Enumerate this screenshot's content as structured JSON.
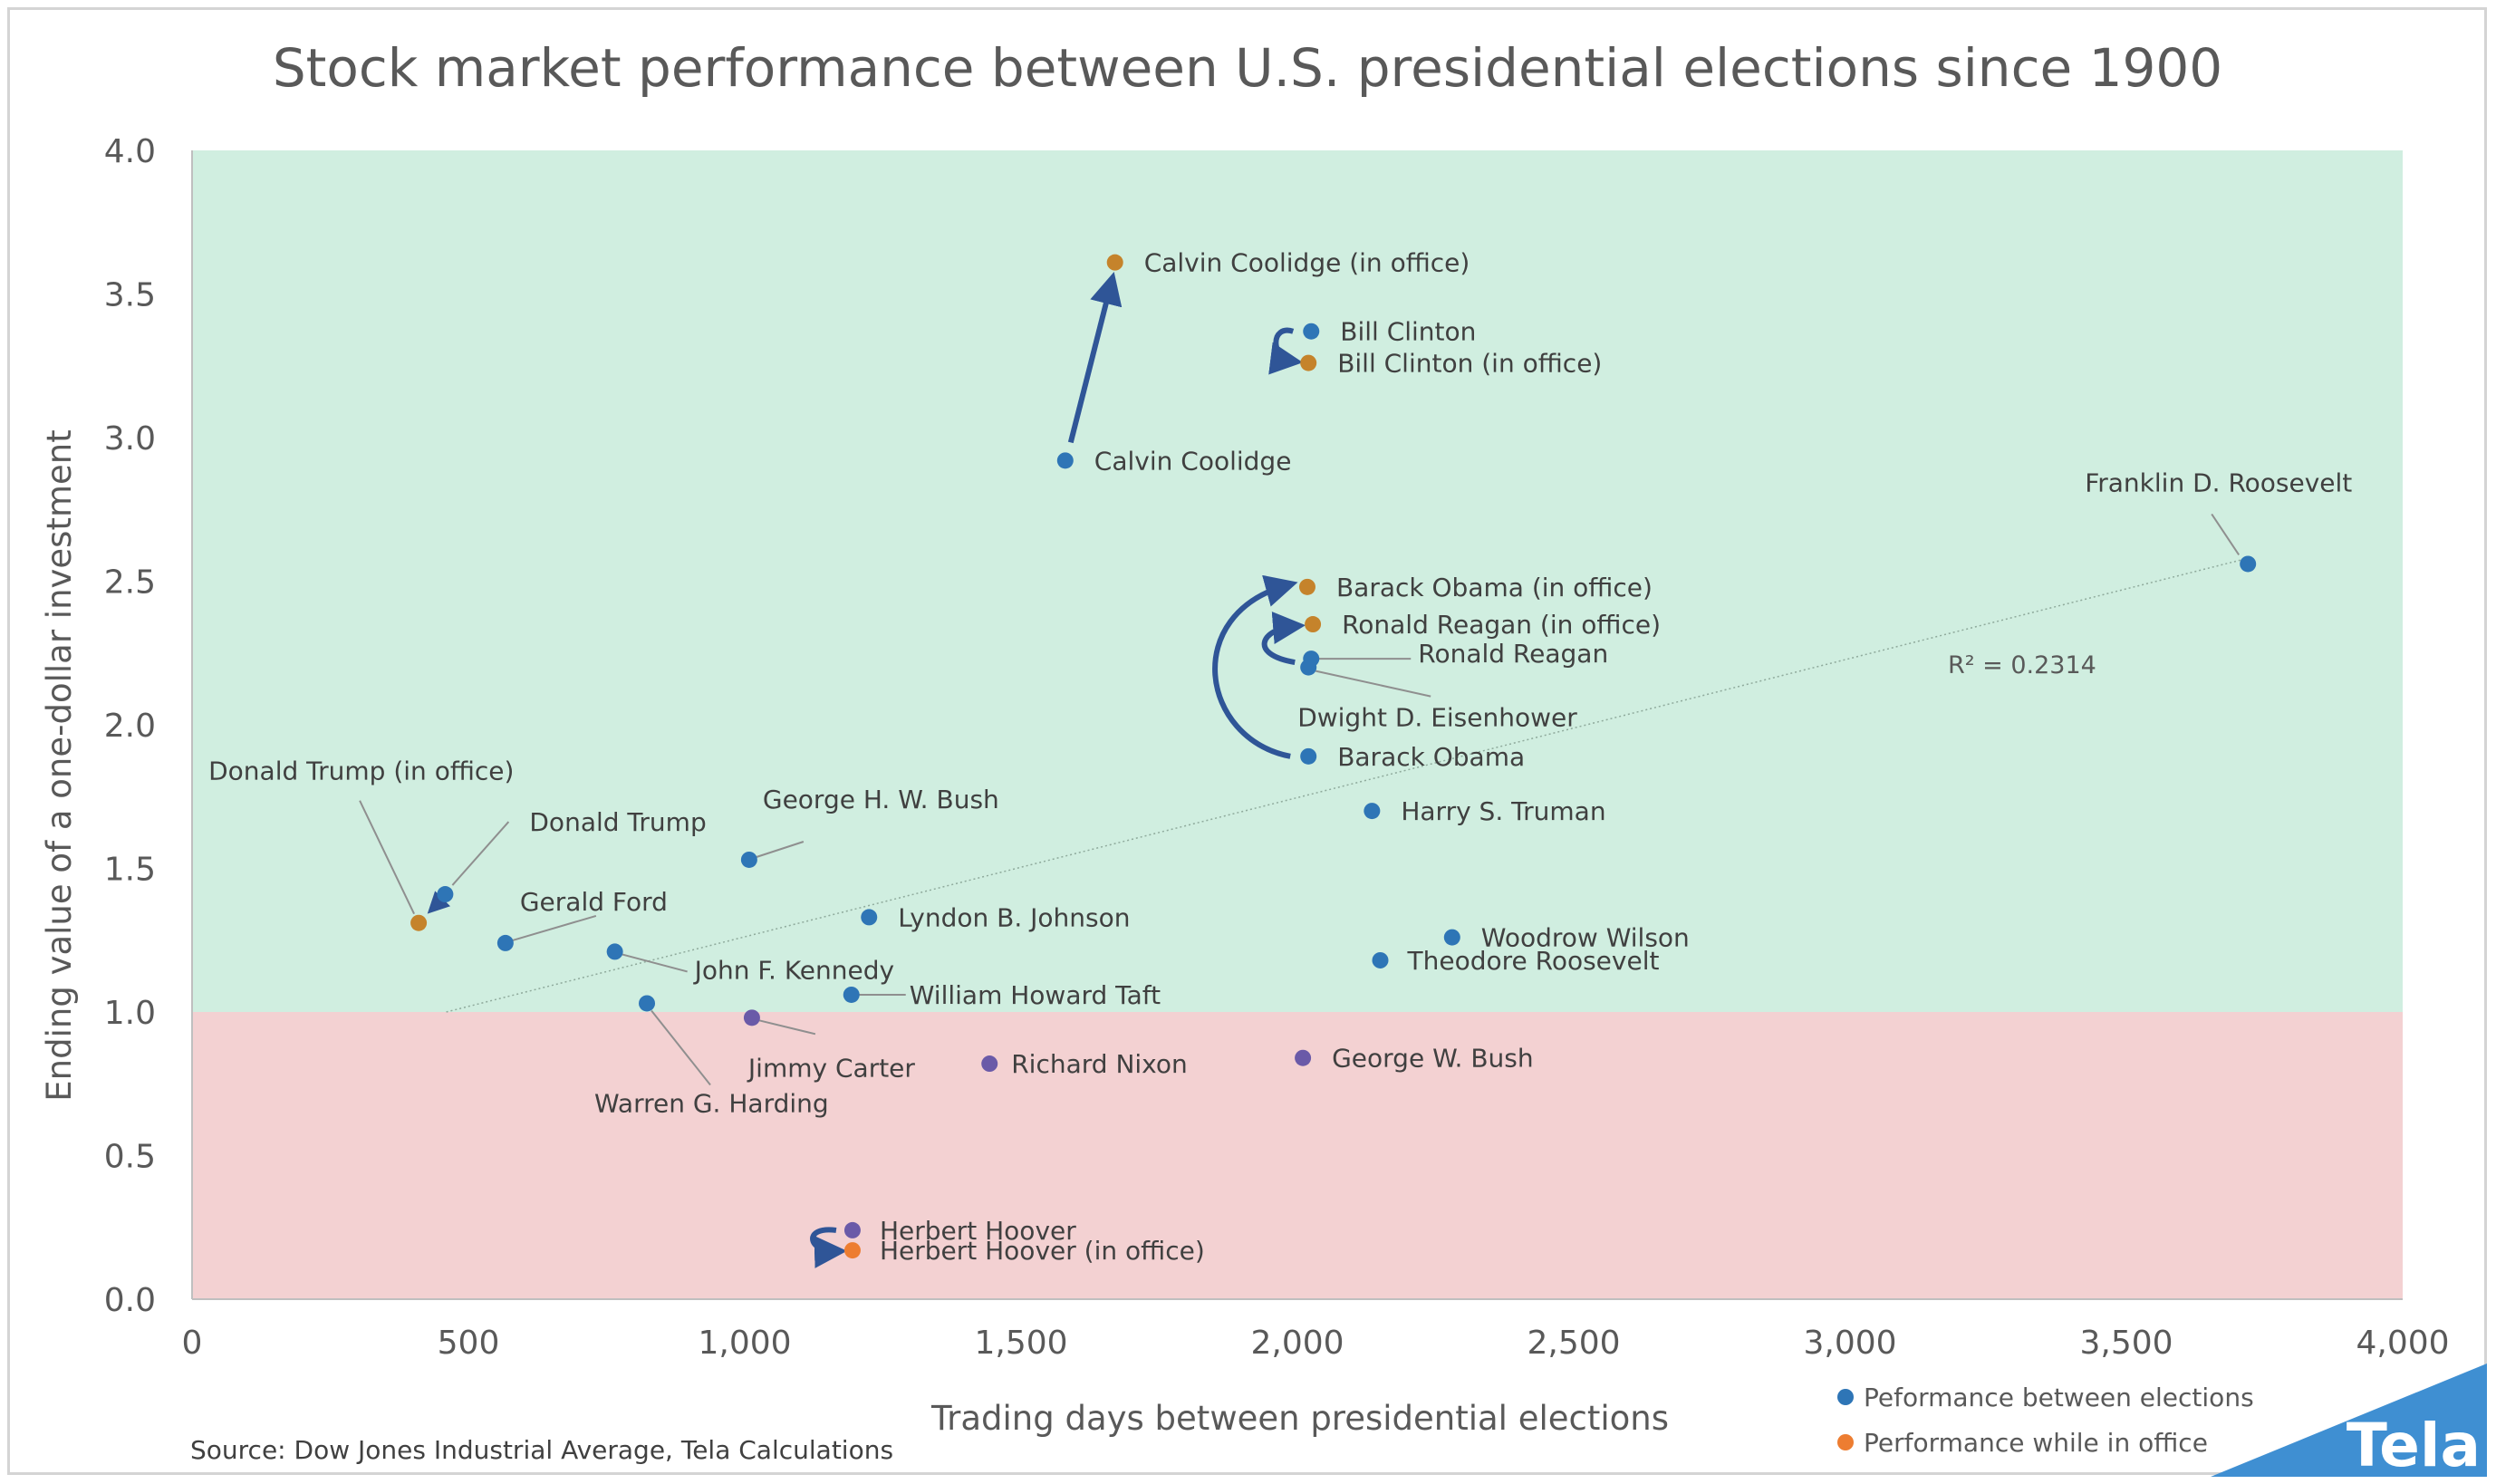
{
  "chart_data": {
    "type": "scatter",
    "title": "Stock market performance between U.S. presidential elections since 1900",
    "xlabel": "Trading days between presidential elections",
    "ylabel": "Ending value of a one-dollar investment",
    "xlim": [
      0,
      4000
    ],
    "ylim": [
      0,
      4.0
    ],
    "x_ticks": [
      "0",
      "500",
      "1,000",
      "1,500",
      "2,000",
      "2,500",
      "3,000",
      "3,500",
      "4,000"
    ],
    "y_ticks": [
      "0.0",
      "0.5",
      "1.0",
      "1.5",
      "2.0",
      "2.5",
      "3.0",
      "3.5",
      "4.0"
    ],
    "background_bands": [
      {
        "from": 1.0,
        "to": 4.0,
        "color": "#d0eee0"
      },
      {
        "from": 0.0,
        "to": 1.0,
        "color": "#f3d1d2"
      }
    ],
    "series": [
      {
        "name": "Peformance between elections",
        "color_gain": "#2e75b6",
        "color_loss": "#6a5aa8",
        "points": [
          {
            "label": "Calvin Coolidge",
            "x": 1580,
            "y": 2.92
          },
          {
            "label": "Bill Clinton",
            "x": 2025,
            "y": 3.37
          },
          {
            "label": "Franklin D. Roosevelt",
            "x": 3720,
            "y": 2.56
          },
          {
            "label": "Ronald Reagan",
            "x": 2025,
            "y": 2.23
          },
          {
            "label": "Dwight D. Eisenhower",
            "x": 2020,
            "y": 2.2
          },
          {
            "label": "Barack Obama",
            "x": 2020,
            "y": 1.89
          },
          {
            "label": "Harry S. Truman",
            "x": 2135,
            "y": 1.7
          },
          {
            "label": "Donald Trump",
            "x": 458,
            "y": 1.41
          },
          {
            "label": "George H. W. Bush",
            "x": 1008,
            "y": 1.53
          },
          {
            "label": "Lyndon B. Johnson",
            "x": 1225,
            "y": 1.33
          },
          {
            "label": "Gerald Ford",
            "x": 567,
            "y": 1.24
          },
          {
            "label": "John F. Kennedy",
            "x": 765,
            "y": 1.21
          },
          {
            "label": "Woodrow Wilson",
            "x": 2280,
            "y": 1.26
          },
          {
            "label": "Theodore Roosevelt",
            "x": 2150,
            "y": 1.18
          },
          {
            "label": "William Howard Taft",
            "x": 1193,
            "y": 1.06
          },
          {
            "label": "Warren G. Harding",
            "x": 823,
            "y": 1.03
          },
          {
            "label": "Jimmy Carter",
            "x": 1013,
            "y": 0.98
          },
          {
            "label": "Richard Nixon",
            "x": 1443,
            "y": 0.82
          },
          {
            "label": "George W. Bush",
            "x": 2010,
            "y": 0.84
          },
          {
            "label": "Herbert Hoover",
            "x": 1195,
            "y": 0.24
          }
        ]
      },
      {
        "name": "Performance while in office",
        "color_gain": "#c5832b",
        "color_loss": "#ed7d31",
        "points": [
          {
            "label": "Calvin Coolidge (in office)",
            "x": 1670,
            "y": 3.61
          },
          {
            "label": "Bill Clinton (in office)",
            "x": 2020,
            "y": 3.26
          },
          {
            "label": "Barack Obama (in office)",
            "x": 2018,
            "y": 2.48
          },
          {
            "label": "Ronald Reagan (in office)",
            "x": 2028,
            "y": 2.35
          },
          {
            "label": "Donald Trump (in office)",
            "x": 410,
            "y": 1.31
          },
          {
            "label": "Herbert Hoover (in office)",
            "x": 1195,
            "y": 0.17
          }
        ]
      }
    ],
    "trendline": {
      "x": [
        460,
        3720
      ],
      "y": [
        1.0,
        2.58
      ],
      "r_squared_label": "R² = 0.2314"
    },
    "legend": {
      "position": "bottom-right",
      "items": [
        {
          "label": "Peformance between elections",
          "color": "#2e75b6"
        },
        {
          "label": "Performance while in office",
          "color": "#ed7d31"
        }
      ]
    },
    "grid": false
  },
  "source": "Source: Dow Jones Industrial Average, Tela Calculations",
  "brand": "Tela",
  "brand_color": "#3f8fd2"
}
